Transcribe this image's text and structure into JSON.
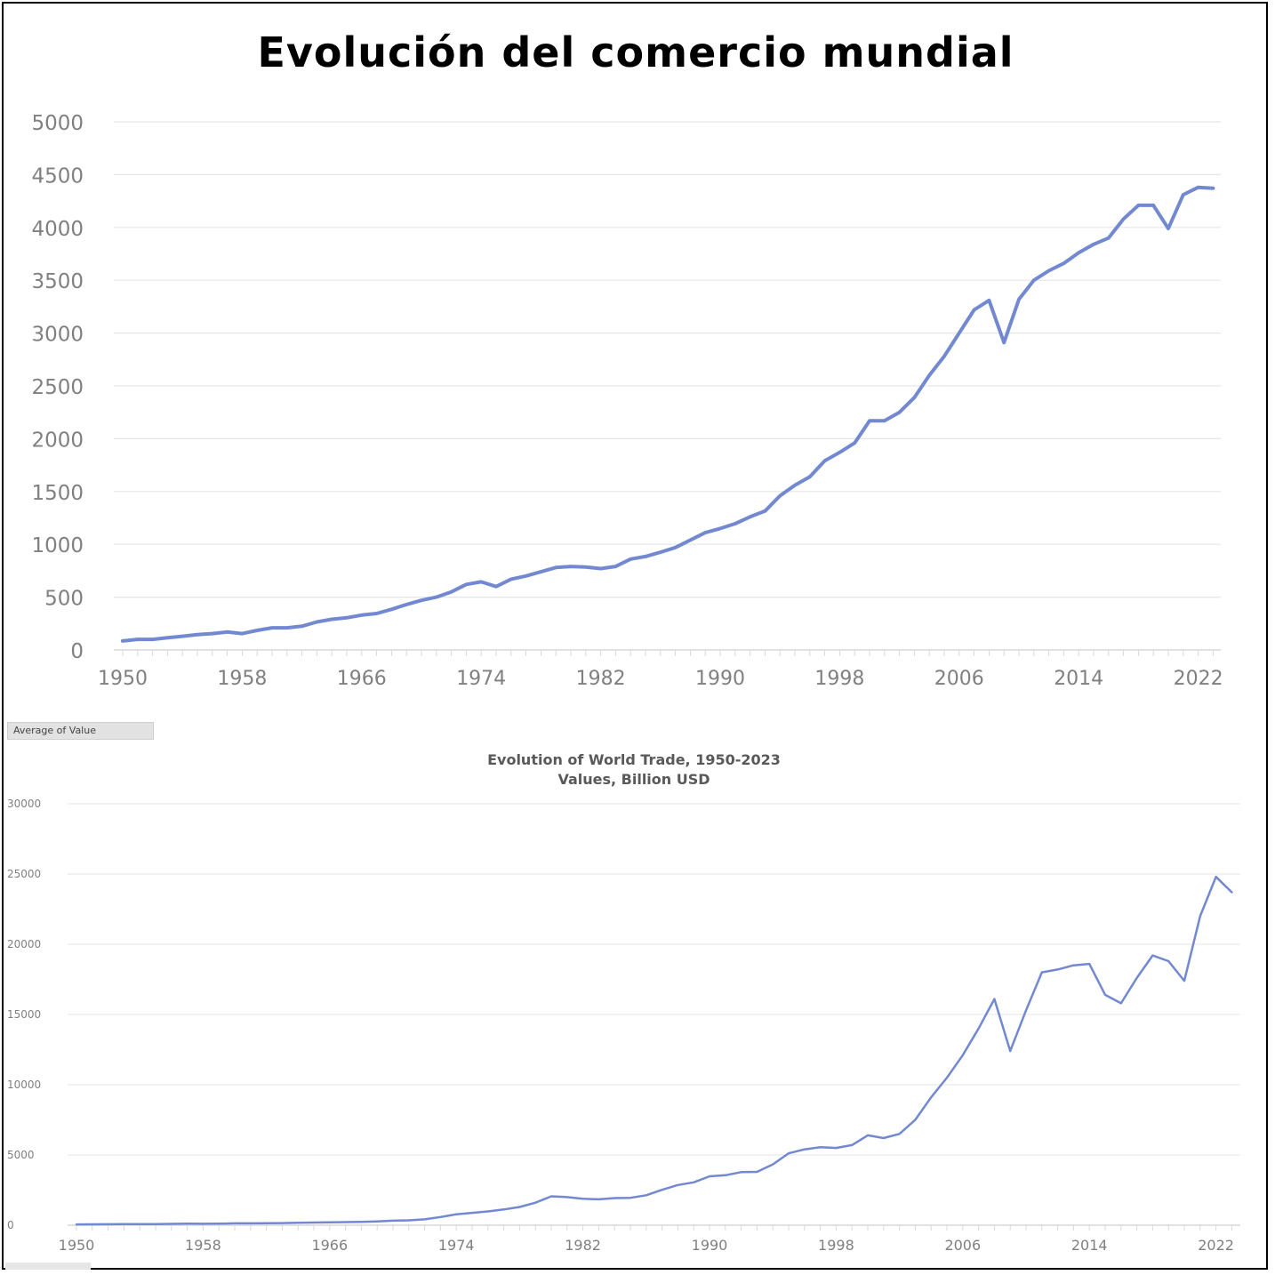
{
  "title": "Evolución del comercio mundial",
  "pivot_button": "Average of Value",
  "colors": {
    "line": "#7289d2",
    "grid": "#e6e6e6",
    "tick": "#808080"
  },
  "chart_data": [
    {
      "type": "line",
      "title": "",
      "xlabel": "",
      "ylabel": "",
      "ylim": [
        0,
        5000
      ],
      "yticks": [
        0,
        500,
        1000,
        1500,
        2000,
        2500,
        3000,
        3500,
        4000,
        4500,
        5000
      ],
      "xticks": [
        1950,
        1958,
        1966,
        1974,
        1982,
        1990,
        1998,
        2006,
        2014,
        2022
      ],
      "grid": true,
      "series": [
        {
          "x": [
            1950,
            1951,
            1952,
            1953,
            1954,
            1955,
            1956,
            1957,
            1958,
            1959,
            1960,
            1961,
            1962,
            1963,
            1964,
            1965,
            1966,
            1967,
            1968,
            1969,
            1970,
            1971,
            1972,
            1973,
            1974,
            1975,
            1976,
            1977,
            1978,
            1979,
            1980,
            1981,
            1982,
            1983,
            1984,
            1985,
            1986,
            1987,
            1988,
            1989,
            1990,
            1991,
            1992,
            1993,
            1994,
            1995,
            1996,
            1997,
            1998,
            1999,
            2000,
            2001,
            2002,
            2003,
            2004,
            2005,
            2006,
            2007,
            2008,
            2009,
            2010,
            2011,
            2012,
            2013,
            2014,
            2015,
            2016,
            2017,
            2018,
            2019,
            2020,
            2021,
            2022,
            2023
          ],
          "values": [
            85,
            100,
            100,
            115,
            130,
            145,
            155,
            170,
            155,
            185,
            210,
            210,
            225,
            265,
            290,
            305,
            330,
            345,
            385,
            430,
            470,
            500,
            550,
            620,
            645,
            600,
            670,
            700,
            740,
            780,
            790,
            785,
            770,
            790,
            860,
            885,
            925,
            970,
            1040,
            1110,
            1150,
            1195,
            1260,
            1315,
            1460,
            1560,
            1640,
            1790,
            1870,
            1960,
            2170,
            2170,
            2250,
            2390,
            2600,
            2780,
            3000,
            3220,
            3310,
            2910,
            3320,
            3500,
            3590,
            3660,
            3760,
            3840,
            3900,
            4080,
            4210,
            4210,
            3990,
            4310,
            4380,
            4370
          ]
        }
      ]
    },
    {
      "type": "line",
      "title": "Evolution of World Trade, 1950-2023",
      "subtitle": "Values, Billion USD",
      "xlabel": "",
      "ylabel": "",
      "ylim": [
        0,
        30000
      ],
      "yticks": [
        0,
        5000,
        10000,
        15000,
        20000,
        25000,
        30000
      ],
      "xticks": [
        1950,
        1958,
        1966,
        1974,
        1982,
        1990,
        1998,
        2006,
        2014,
        2022
      ],
      "grid": true,
      "series": [
        {
          "x": [
            1950,
            1951,
            1952,
            1953,
            1954,
            1955,
            1956,
            1957,
            1958,
            1959,
            1960,
            1961,
            1962,
            1963,
            1964,
            1965,
            1966,
            1967,
            1968,
            1969,
            1970,
            1971,
            1972,
            1973,
            1974,
            1975,
            1976,
            1977,
            1978,
            1979,
            1980,
            1981,
            1982,
            1983,
            1984,
            1985,
            1986,
            1987,
            1988,
            1989,
            1990,
            1991,
            1992,
            1993,
            1994,
            1995,
            1996,
            1997,
            1998,
            1999,
            2000,
            2001,
            2002,
            2003,
            2004,
            2005,
            2006,
            2007,
            2008,
            2009,
            2010,
            2011,
            2012,
            2013,
            2014,
            2015,
            2016,
            2017,
            2018,
            2019,
            2020,
            2021,
            2022,
            2023
          ],
          "values": [
            60,
            65,
            70,
            75,
            78,
            85,
            95,
            105,
            100,
            110,
            130,
            135,
            140,
            155,
            175,
            190,
            210,
            220,
            240,
            270,
            320,
            350,
            420,
            580,
            780,
            880,
            980,
            1120,
            1300,
            1600,
            2060,
            2000,
            1880,
            1840,
            1930,
            1950,
            2130,
            2520,
            2860,
            3050,
            3480,
            3560,
            3780,
            3800,
            4330,
            5120,
            5400,
            5560,
            5500,
            5700,
            6400,
            6200,
            6500,
            7500,
            9100,
            10500,
            12100,
            14000,
            16100,
            12400,
            15300,
            18000,
            18200,
            18500,
            18600,
            16400,
            15800,
            17600,
            19200,
            18800,
            17400,
            22000,
            24800,
            23700
          ]
        }
      ]
    }
  ]
}
